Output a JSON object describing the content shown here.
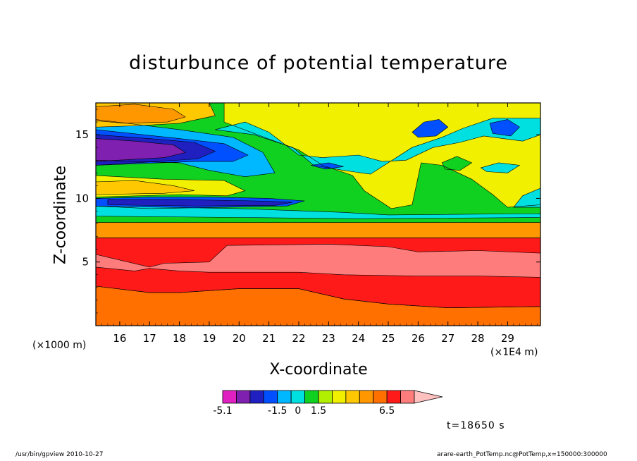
{
  "title": "disturbunce of potential temperature",
  "footer_left": "/usr/bin/gpview  2010-10-27",
  "footer_right": "arare-earth_PotTemp.nc@PotTemp,x=150000:300000",
  "time_label": "t=18650 s",
  "chart_data": {
    "type": "heatmap",
    "title": "disturbunce of potential temperature",
    "xlabel": "X-coordinate",
    "ylabel": "Z-coordinate",
    "x_unit_left": "(×1000 m)",
    "x_unit_right": "(×1E4 m)",
    "xlim": [
      15.2,
      30.1
    ],
    "ylim": [
      0,
      17.5
    ],
    "x_ticks": [
      16,
      17,
      18,
      19,
      20,
      21,
      22,
      23,
      24,
      25,
      26,
      27,
      28,
      29
    ],
    "y_ticks": [
      5,
      10,
      15
    ],
    "colorbar": {
      "colors": [
        "#e020c0",
        "#8020b0",
        "#2020c0",
        "#0050ff",
        "#00b8ff",
        "#00e0e0",
        "#10d020",
        "#b0f000",
        "#f0f000",
        "#ffc800",
        "#ff9800",
        "#ff7000",
        "#ff1a1a",
        "#ff7c7c",
        "#ffc0c0"
      ],
      "labels": [
        {
          "text": "-5.1",
          "position": 0
        },
        {
          "text": "-1.5",
          "position": 4
        },
        {
          "text": "0",
          "position": 5.5
        },
        {
          "text": "1.5",
          "position": 7
        },
        {
          "text": "6.5",
          "position": 12
        }
      ]
    },
    "regions": [
      {
        "name": "lower-layer",
        "color": "#ff7000",
        "points": [
          [
            15.2,
            0
          ],
          [
            30.1,
            0
          ],
          [
            30.1,
            1.5
          ],
          [
            27,
            1.4
          ],
          [
            25,
            1.7
          ],
          [
            23.5,
            2.1
          ],
          [
            22,
            2.9
          ],
          [
            20,
            2.9
          ],
          [
            18,
            2.6
          ],
          [
            17,
            2.6
          ],
          [
            15.2,
            3.1
          ]
        ]
      },
      {
        "name": "red-band",
        "color": "#ff1a1a",
        "points": [
          [
            15.2,
            3.1
          ],
          [
            17,
            2.6
          ],
          [
            18,
            2.6
          ],
          [
            20,
            2.9
          ],
          [
            22,
            2.9
          ],
          [
            23.5,
            2.1
          ],
          [
            25,
            1.7
          ],
          [
            27,
            1.4
          ],
          [
            30.1,
            1.5
          ],
          [
            30.1,
            6.9
          ],
          [
            15.2,
            6.9
          ]
        ]
      },
      {
        "name": "pink-band",
        "color": "#ff7c7c",
        "points": [
          [
            15.2,
            4.6
          ],
          [
            16.5,
            4.3
          ],
          [
            17,
            4.5
          ],
          [
            18,
            4.3
          ],
          [
            19,
            4.2
          ],
          [
            22,
            4.2
          ],
          [
            23.5,
            4.0
          ],
          [
            26,
            3.9
          ],
          [
            28,
            3.9
          ],
          [
            30.1,
            3.8
          ],
          [
            30.1,
            5.7
          ],
          [
            28,
            5.9
          ],
          [
            26,
            5.8
          ],
          [
            25,
            6.2
          ],
          [
            23,
            6.4
          ],
          [
            19.6,
            6.3
          ],
          [
            19,
            5.0
          ],
          [
            17.5,
            4.9
          ],
          [
            17,
            4.6
          ],
          [
            15.2,
            5.6
          ]
        ]
      },
      {
        "name": "orange-band",
        "color": "#ff9800",
        "points": [
          [
            15.2,
            6.9
          ],
          [
            30.1,
            6.9
          ],
          [
            30.1,
            8.1
          ],
          [
            15.2,
            8.1
          ]
        ]
      },
      {
        "name": "green-mid",
        "color": "#10d020",
        "points": [
          [
            15.2,
            8.1
          ],
          [
            30.1,
            8.1
          ],
          [
            30.1,
            17.5
          ],
          [
            15.2,
            17.5
          ]
        ]
      },
      {
        "name": "yellow-upper",
        "color": "#f0f000",
        "points": [
          [
            19.5,
            17.5
          ],
          [
            30.1,
            17.5
          ],
          [
            30.1,
            9.5
          ],
          [
            29,
            9.3
          ],
          [
            28.5,
            10.3
          ],
          [
            27.8,
            11.5
          ],
          [
            26.8,
            12.6
          ],
          [
            26.1,
            12.8
          ],
          [
            25.8,
            9.5
          ],
          [
            25.1,
            9.2
          ],
          [
            24.2,
            10.6
          ],
          [
            23.8,
            11.8
          ],
          [
            22.8,
            12.6
          ],
          [
            22,
            13.8
          ],
          [
            20.5,
            15.1
          ],
          [
            19.5,
            16.0
          ]
        ]
      },
      {
        "name": "cyan-upper",
        "color": "#00e0e0",
        "points": [
          [
            19.2,
            15.4
          ],
          [
            20.5,
            15.0
          ],
          [
            21.8,
            14.0
          ],
          [
            22.5,
            12.6
          ],
          [
            23.5,
            12.2
          ],
          [
            24.4,
            11.9
          ],
          [
            24.8,
            12.5
          ],
          [
            25.8,
            14.0
          ],
          [
            26.8,
            14.8
          ],
          [
            27.5,
            15.5
          ],
          [
            28.5,
            16.3
          ],
          [
            30.1,
            16.3
          ],
          [
            30.1,
            15.0
          ],
          [
            29.5,
            14.5
          ],
          [
            28.2,
            14.9
          ],
          [
            27.4,
            14.4
          ],
          [
            26.5,
            14.0
          ],
          [
            25.6,
            13.0
          ],
          [
            24.8,
            12.9
          ],
          [
            24.0,
            13.4
          ],
          [
            22.8,
            13.2
          ],
          [
            22.0,
            13.4
          ],
          [
            21.0,
            15.2
          ],
          [
            20.2,
            16.0
          ]
        ]
      },
      {
        "name": "cyan-left",
        "color": "#00b8ff",
        "points": [
          [
            15.2,
            16.2
          ],
          [
            18,
            15.4
          ],
          [
            19.8,
            14.8
          ],
          [
            20.8,
            13.6
          ],
          [
            21.2,
            12.0
          ],
          [
            20.2,
            11.7
          ],
          [
            19,
            12.2
          ],
          [
            18,
            12.8
          ],
          [
            15.2,
            13.0
          ]
        ]
      },
      {
        "name": "blue-left",
        "color": "#0050ff",
        "points": [
          [
            15.2,
            15.4
          ],
          [
            18,
            14.7
          ],
          [
            19.5,
            14.3
          ],
          [
            20.3,
            13.4
          ],
          [
            19.8,
            12.9
          ],
          [
            18.5,
            12.9
          ],
          [
            15.2,
            12.6
          ]
        ]
      },
      {
        "name": "navy-left",
        "color": "#2020c0",
        "points": [
          [
            15.2,
            15.0
          ],
          [
            17,
            14.7
          ],
          [
            18.5,
            14.4
          ],
          [
            19.2,
            13.7
          ],
          [
            18.6,
            13.1
          ],
          [
            15.2,
            12.6
          ]
        ]
      },
      {
        "name": "purple-left",
        "color": "#8020b0",
        "points": [
          [
            15.2,
            14.7
          ],
          [
            16.5,
            14.5
          ],
          [
            17.8,
            14.2
          ],
          [
            18.2,
            13.6
          ],
          [
            17.5,
            13.2
          ],
          [
            15.2,
            12.9
          ]
        ]
      },
      {
        "name": "orange-upper-left",
        "color": "#ffc800",
        "points": [
          [
            15.2,
            17.5
          ],
          [
            19.0,
            17.5
          ],
          [
            19.2,
            16.5
          ],
          [
            18.0,
            15.9
          ],
          [
            16.5,
            15.7
          ],
          [
            15.2,
            15.6
          ]
        ]
      },
      {
        "name": "orange-core-upper",
        "color": "#ff9800",
        "points": [
          [
            15.2,
            17.2
          ],
          [
            16.5,
            17.4
          ],
          [
            17.8,
            17.0
          ],
          [
            18.2,
            16.4
          ],
          [
            17.6,
            16.0
          ],
          [
            16.2,
            15.9
          ],
          [
            15.2,
            16.1
          ]
        ]
      },
      {
        "name": "yellow-mid-left",
        "color": "#f0f000",
        "points": [
          [
            15.2,
            11.8
          ],
          [
            17.5,
            11.5
          ],
          [
            19.5,
            11.4
          ],
          [
            20.2,
            10.6
          ],
          [
            19.6,
            10.2
          ],
          [
            18,
            10.3
          ],
          [
            15.2,
            10.1
          ]
        ]
      },
      {
        "name": "orange-mid-left",
        "color": "#ffc800",
        "points": [
          [
            15.2,
            11.3
          ],
          [
            16.5,
            11.4
          ],
          [
            17.8,
            11.0
          ],
          [
            18.5,
            10.6
          ],
          [
            17.5,
            10.4
          ],
          [
            15.2,
            10.3
          ]
        ]
      },
      {
        "name": "blue-jet",
        "color": "#0050ff",
        "points": [
          [
            15.2,
            10.0
          ],
          [
            17,
            10.1
          ],
          [
            19,
            10.1
          ],
          [
            21,
            10.0
          ],
          [
            22.2,
            9.8
          ],
          [
            21.6,
            9.4
          ],
          [
            19.5,
            9.3
          ],
          [
            17,
            9.2
          ],
          [
            15.2,
            9.4
          ]
        ]
      },
      {
        "name": "navy-jet",
        "color": "#2020c0",
        "points": [
          [
            15.6,
            9.9
          ],
          [
            18,
            9.9
          ],
          [
            20.5,
            9.8
          ],
          [
            21.8,
            9.7
          ],
          [
            21.2,
            9.45
          ],
          [
            18.5,
            9.4
          ],
          [
            15.6,
            9.5
          ]
        ]
      },
      {
        "name": "cyan-jet",
        "color": "#00e0e0",
        "points": [
          [
            15.2,
            9.4
          ],
          [
            20,
            9.2
          ],
          [
            23.5,
            8.9
          ],
          [
            25,
            8.7
          ],
          [
            30.1,
            8.8
          ],
          [
            30.1,
            8.5
          ],
          [
            24,
            8.4
          ],
          [
            20,
            8.5
          ],
          [
            15.2,
            8.6
          ]
        ]
      },
      {
        "name": "blue-cell-1",
        "color": "#0050ff",
        "points": [
          [
            25.8,
            15.2
          ],
          [
            26.2,
            16.0
          ],
          [
            26.7,
            16.2
          ],
          [
            27,
            15.6
          ],
          [
            26.6,
            14.9
          ],
          [
            26.0,
            14.8
          ]
        ]
      },
      {
        "name": "blue-cell-2",
        "color": "#0050ff",
        "points": [
          [
            28.4,
            15.9
          ],
          [
            29.0,
            16.2
          ],
          [
            29.4,
            15.6
          ],
          [
            29.1,
            14.9
          ],
          [
            28.5,
            15.1
          ]
        ]
      },
      {
        "name": "blue-cell-3",
        "color": "#0050ff",
        "points": [
          [
            22.4,
            12.6
          ],
          [
            23.0,
            12.8
          ],
          [
            23.5,
            12.5
          ],
          [
            22.9,
            12.3
          ]
        ]
      },
      {
        "name": "green-cell",
        "color": "#10d020",
        "points": [
          [
            26.8,
            12.8
          ],
          [
            27.3,
            13.3
          ],
          [
            27.8,
            12.8
          ],
          [
            27.4,
            12.2
          ],
          [
            26.9,
            12.3
          ]
        ]
      },
      {
        "name": "cyan-cell",
        "color": "#00e0e0",
        "points": [
          [
            28.1,
            12.4
          ],
          [
            28.7,
            12.8
          ],
          [
            29.4,
            12.6
          ],
          [
            29.0,
            12.0
          ],
          [
            28.3,
            12.1
          ]
        ]
      },
      {
        "name": "cyan-right",
        "color": "#00e0e0",
        "points": [
          [
            30.1,
            10.8
          ],
          [
            29.5,
            10.2
          ],
          [
            29.2,
            9.3
          ],
          [
            30.1,
            9.3
          ]
        ]
      }
    ]
  }
}
